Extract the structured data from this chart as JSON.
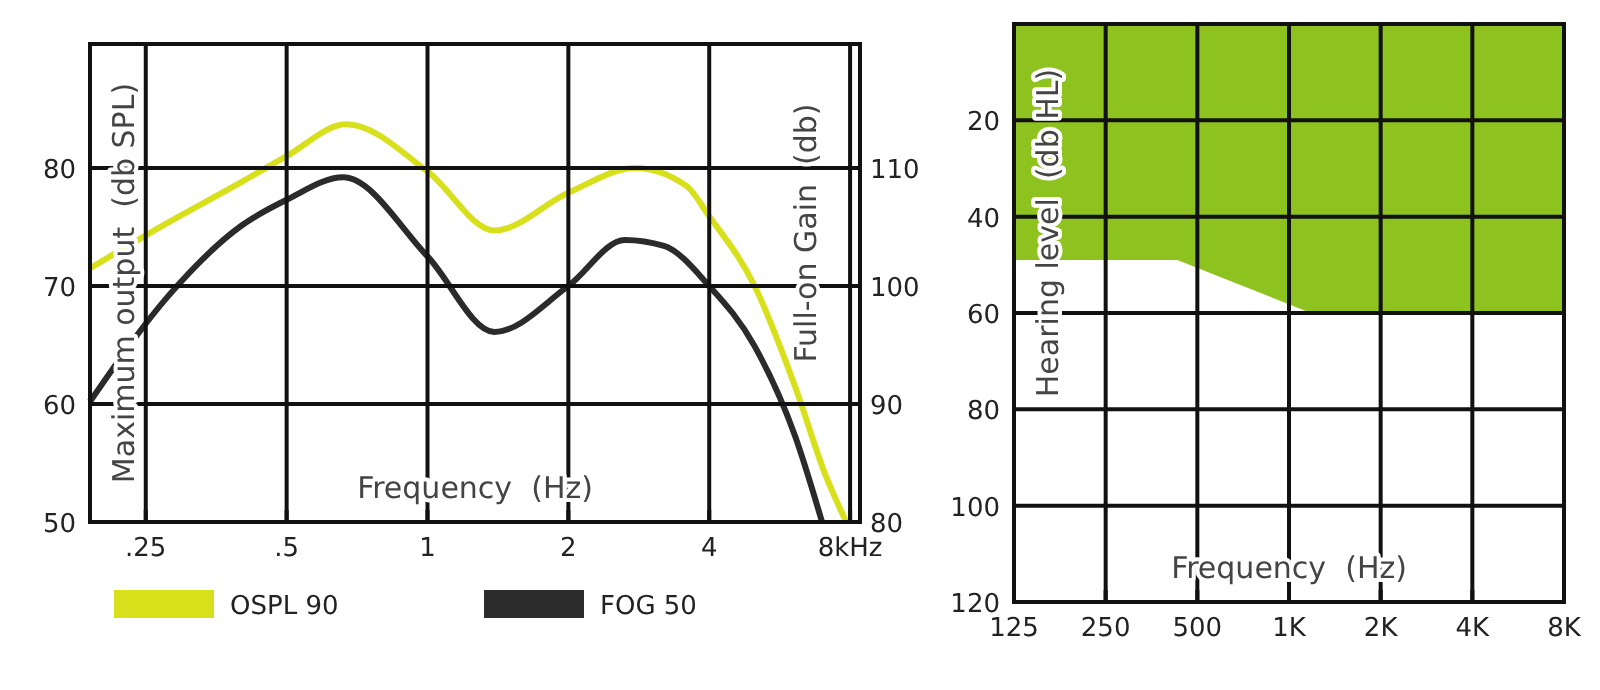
{
  "chart_data": [
    {
      "type": "line",
      "xlabel": "Frequency  (Hz)",
      "ylabel": "Maximum output  (db SPL)",
      "y2label": "Full-on Gain  (db)",
      "log": "x",
      "grid": true,
      "legend": "bottom",
      "xlim": [
        0.19,
        8.4
      ],
      "ylim": [
        50,
        90.5
      ],
      "y2lim": [
        80,
        120.5
      ],
      "xticks": [
        {
          "value": 0.25,
          "label": ".25"
        },
        {
          "value": 0.5,
          "label": ".5"
        },
        1,
        2,
        4,
        {
          "value": 8,
          "label": "8kHz"
        }
      ],
      "yticks": [
        50,
        60,
        70,
        80
      ],
      "y2ticks": [
        80,
        90,
        100,
        110
      ],
      "series": [
        {
          "name": "OSPL 90",
          "color": "#d8e01c",
          "x": [
            0.19,
            0.28,
            0.4,
            0.5,
            0.67,
            1.0,
            1.39,
            2,
            2.78,
            3.57,
            4,
            5.0,
            6.1,
            7.1,
            7.85
          ],
          "values": [
            71.5,
            75.4,
            78.8,
            81.0,
            83.7,
            79.7,
            74.7,
            77.9,
            80.0,
            78.5,
            75.9,
            70,
            61.5,
            53.9,
            50
          ]
        },
        {
          "name": "FOG 50",
          "color": "#2b2b2b",
          "axis": "y2",
          "x": [
            0.19,
            0.28,
            0.4,
            0.5,
            0.66,
            1.0,
            1.39,
            2,
            2.64,
            3.2,
            4,
            5.0,
            6.1,
            6.97
          ],
          "values": [
            90.2,
            99.2,
            105.1,
            107.3,
            109.2,
            102.5,
            96.1,
            100,
            103.9,
            103.4,
            100,
            94.9,
            87.3,
            80
          ]
        }
      ]
    },
    {
      "type": "area",
      "xlabel": "Frequency  (Hz)",
      "ylabel": "Hearing level  (db HL)",
      "log": "x",
      "grid": true,
      "xlim": [
        125,
        8000
      ],
      "ylim": [
        120,
        0
      ],
      "xticks": [
        125,
        250,
        500,
        {
          "value": 1000,
          "label": "1K"
        },
        {
          "value": 2000,
          "label": "2K"
        },
        {
          "value": 4000,
          "label": "4K"
        },
        {
          "value": 8000,
          "label": "8K"
        }
      ],
      "yticks": [
        20,
        40,
        60,
        80,
        100,
        120
      ],
      "series": [
        {
          "color": "#8dc21f",
          "x": [
            125,
            430,
            1180,
            8000
          ],
          "values": [
            49,
            49,
            60,
            60
          ]
        }
      ]
    }
  ]
}
